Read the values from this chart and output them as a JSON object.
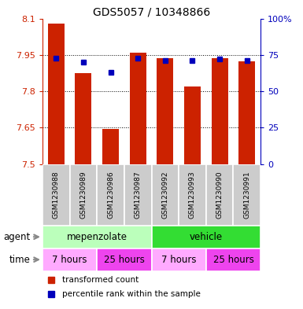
{
  "title": "GDS5057 / 10348866",
  "samples": [
    "GSM1230988",
    "GSM1230989",
    "GSM1230986",
    "GSM1230987",
    "GSM1230992",
    "GSM1230993",
    "GSM1230990",
    "GSM1230991"
  ],
  "transformed_counts": [
    8.08,
    7.875,
    7.645,
    7.96,
    7.935,
    7.82,
    7.935,
    7.925
  ],
  "percentile_ranks": [
    73,
    70,
    63,
    73,
    71,
    71,
    72,
    71
  ],
  "y_min": 7.5,
  "y_max": 8.1,
  "y_ticks": [
    7.5,
    7.65,
    7.8,
    7.95,
    8.1
  ],
  "y_tick_labels": [
    "7.5",
    "7.65",
    "7.8",
    "7.95",
    "8.1"
  ],
  "y2_ticks": [
    0,
    25,
    50,
    75,
    100
  ],
  "y2_tick_labels": [
    "0",
    "25",
    "50",
    "75",
    "100%"
  ],
  "bar_color": "#cc2200",
  "dot_color": "#0000bb",
  "bar_width": 0.6,
  "agent_groups": [
    {
      "label": "mepenzolate",
      "start": 0,
      "end": 4,
      "color": "#bbffbb"
    },
    {
      "label": "vehicle",
      "start": 4,
      "end": 8,
      "color": "#33dd33"
    }
  ],
  "time_groups": [
    {
      "label": "7 hours",
      "start": 0,
      "end": 2,
      "color": "#ffaaff"
    },
    {
      "label": "25 hours",
      "start": 2,
      "end": 4,
      "color": "#ee44ee"
    },
    {
      "label": "7 hours",
      "start": 4,
      "end": 6,
      "color": "#ffaaff"
    },
    {
      "label": "25 hours",
      "start": 6,
      "end": 8,
      "color": "#ee44ee"
    }
  ],
  "legend_red_label": "transformed count",
  "legend_blue_label": "percentile rank within the sample",
  "xlabel_agent": "agent",
  "xlabel_time": "time",
  "axis_label_color_left": "#cc2200",
  "axis_label_color_right": "#0000bb",
  "sample_bg_color": "#cccccc",
  "arrow_color": "#888888"
}
